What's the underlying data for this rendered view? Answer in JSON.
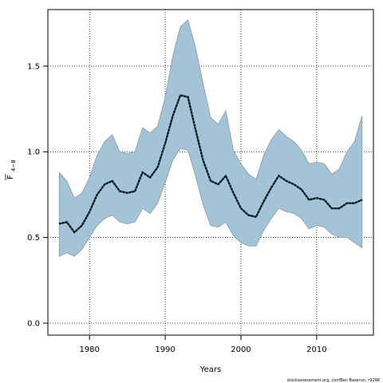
{
  "chart_data": {
    "type": "line",
    "title": "",
    "xlabel": "Years",
    "ylabel_main": "F",
    "ylabel_sub": "4−8",
    "xlim": [
      1974.5,
      2017.5
    ],
    "ylim": [
      -0.07,
      1.83
    ],
    "xticks": [
      1980,
      1990,
      2000,
      2010
    ],
    "yticks": [
      "0.0",
      "0.5",
      "1.0",
      "1.5"
    ],
    "grid": true,
    "x": [
      1976,
      1977,
      1978,
      1979,
      1980,
      1981,
      1982,
      1983,
      1984,
      1985,
      1986,
      1987,
      1988,
      1989,
      1990,
      1991,
      1992,
      1993,
      1994,
      1995,
      1996,
      1997,
      1998,
      1999,
      2000,
      2001,
      2002,
      2003,
      2004,
      2005,
      2006,
      2007,
      2008,
      2009,
      2010,
      2011,
      2012,
      2013,
      2014,
      2015,
      2016
    ],
    "series": [
      {
        "role": "estimate",
        "values": [
          0.58,
          0.59,
          0.53,
          0.57,
          0.65,
          0.75,
          0.81,
          0.83,
          0.77,
          0.76,
          0.77,
          0.88,
          0.85,
          0.91,
          1.05,
          1.21,
          1.33,
          1.32,
          1.13,
          0.95,
          0.83,
          0.81,
          0.86,
          0.76,
          0.67,
          0.63,
          0.62,
          0.71,
          0.79,
          0.86,
          0.83,
          0.81,
          0.78,
          0.72,
          0.73,
          0.72,
          0.67,
          0.67,
          0.7,
          0.7,
          0.72
        ]
      },
      {
        "role": "upper",
        "values": [
          0.88,
          0.83,
          0.73,
          0.76,
          0.85,
          0.98,
          1.06,
          1.1,
          1.0,
          0.99,
          1.0,
          1.14,
          1.11,
          1.15,
          1.32,
          1.56,
          1.73,
          1.77,
          1.61,
          1.4,
          1.2,
          1.16,
          1.24,
          1.01,
          0.93,
          0.87,
          0.84,
          0.98,
          1.07,
          1.13,
          1.09,
          1.06,
          1.01,
          0.93,
          0.94,
          0.93,
          0.87,
          0.9,
          1.0,
          1.06,
          1.21
        ]
      },
      {
        "role": "lower",
        "values": [
          0.39,
          0.41,
          0.39,
          0.43,
          0.5,
          0.57,
          0.61,
          0.63,
          0.59,
          0.58,
          0.59,
          0.67,
          0.64,
          0.7,
          0.82,
          0.95,
          1.02,
          1.01,
          0.86,
          0.69,
          0.57,
          0.56,
          0.59,
          0.51,
          0.47,
          0.45,
          0.45,
          0.54,
          0.61,
          0.67,
          0.65,
          0.64,
          0.61,
          0.55,
          0.57,
          0.56,
          0.52,
          0.5,
          0.5,
          0.47,
          0.44
        ]
      }
    ],
    "band_color": "#a3c4d6",
    "band_edge_color": "#8a9aa3",
    "line_color": "#000000",
    "line_dash_color": "#1a4a5e"
  },
  "footer": {
    "credit": "stockassessment.org, confBen Baserun, r9298"
  }
}
